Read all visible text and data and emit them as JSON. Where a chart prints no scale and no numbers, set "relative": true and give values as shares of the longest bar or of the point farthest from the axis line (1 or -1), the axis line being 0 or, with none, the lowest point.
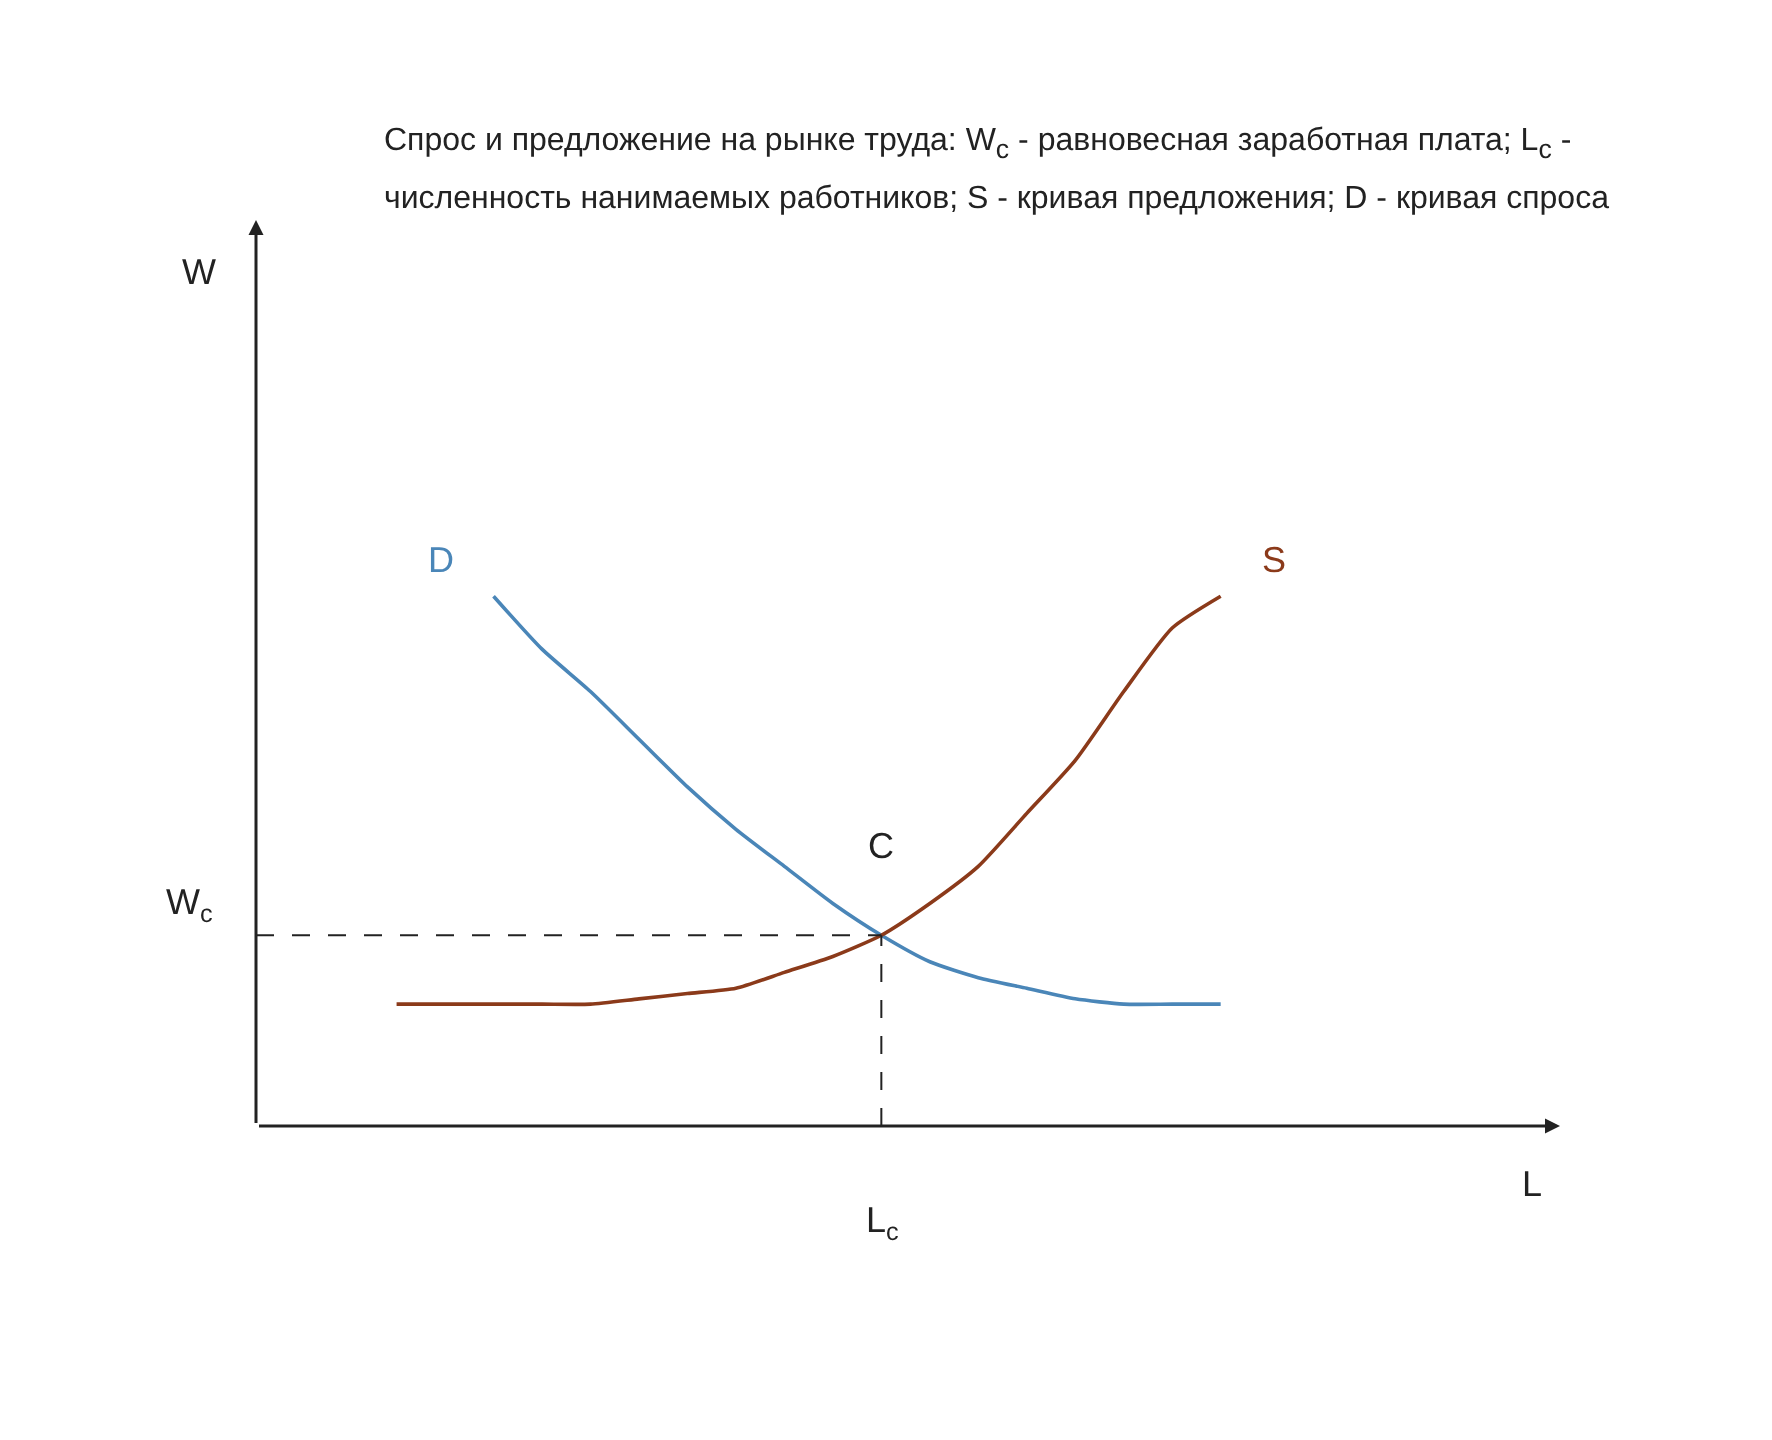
{
  "chart_data": {
    "type": "line",
    "relative": true,
    "title": "Спрос и предложение на рынке труда: W$_{c}$ - равновесная заработная плата; L$_{c}$ - численность нанимаемых работников; S - кривая предложения; D - кривая спроса",
    "categories": [
      null,
      null,
      null,
      null,
      null,
      null,
      null,
      null,
      null,
      null,
      null,
      null,
      null,
      null,
      null,
      null,
      null,
      null
    ],
    "series": [
      {
        "name": "D",
        "color": "#4a86b8",
        "values": [
          null,
          null,
          1.0,
          0.9,
          0.82,
          0.73,
          0.64,
          0.56,
          0.49,
          0.42,
          0.36,
          0.31,
          0.28,
          0.26,
          0.24,
          0.23,
          0.23,
          0.23
        ]
      },
      {
        "name": "S",
        "color": "#8b3a1a",
        "values": [
          0.23,
          0.23,
          0.23,
          0.23,
          0.23,
          0.24,
          0.25,
          0.26,
          0.29,
          0.32,
          0.36,
          0.42,
          0.49,
          0.59,
          0.69,
          0.82,
          0.94,
          1.0
        ]
      }
    ],
    "ref_lines": [
      {
        "axis": "y",
        "value": 0.36,
        "label": "W$_{c}$",
        "line_style": "dashed"
      }
    ],
    "annotations": [
      "W",
      "L",
      "L$_{c}$",
      {
        "text": "C",
        "y": 0.36
      }
    ],
    "legend": false,
    "marker": "none",
    "line_style": "solid"
  }
}
